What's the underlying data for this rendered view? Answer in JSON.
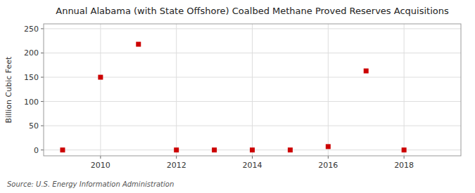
{
  "chart_data": {
    "type": "scatter",
    "title": "Annual Alabama (with State Offshore) Coalbed Methane Proved Reserves Acquisitions",
    "ylabel": "Billion Cubic Feet",
    "source": "Source: U.S. Energy Information Administration",
    "x": [
      2009,
      2010,
      2011,
      2012,
      2013,
      2014,
      2015,
      2016,
      2017,
      2018
    ],
    "values": [
      0,
      150,
      218,
      0,
      0,
      0,
      0,
      7,
      163,
      0
    ],
    "color": "#cc0000",
    "marker": "square",
    "xlim": [
      2008.5,
      2019.5
    ],
    "ylim": [
      -12,
      260
    ],
    "xticks": [
      2010,
      2012,
      2014,
      2016,
      2018
    ],
    "yticks": [
      0,
      50,
      100,
      150,
      200,
      250
    ],
    "grid": true
  }
}
